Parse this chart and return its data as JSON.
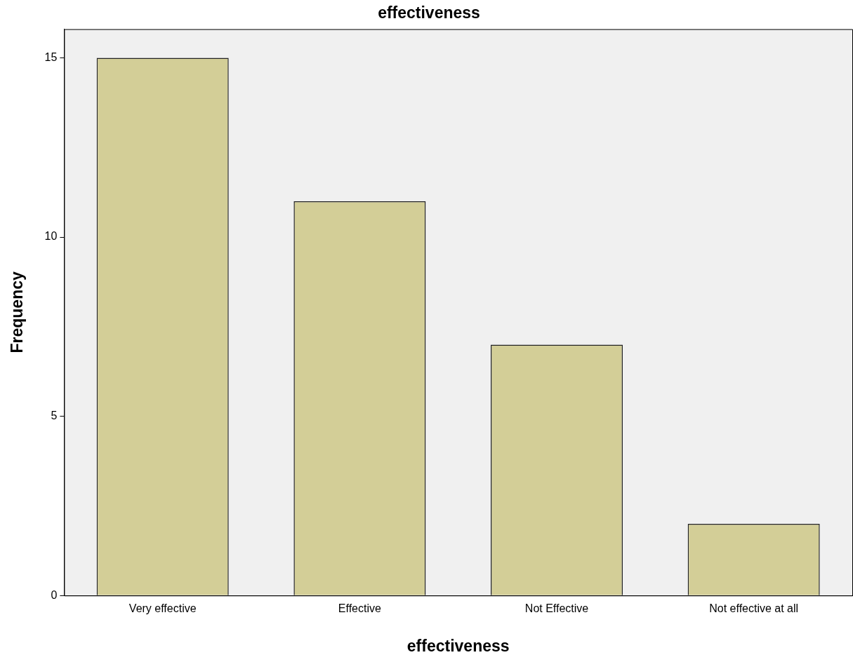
{
  "chart_data": {
    "type": "bar",
    "title": "effectiveness",
    "xlabel": "effectiveness",
    "ylabel": "Frequency",
    "categories": [
      "Very effective",
      "Effective",
      "Not Effective",
      "Not effective at all"
    ],
    "values": [
      15,
      11,
      7,
      2
    ],
    "color": "#d3ce97",
    "ylim": [
      0,
      15.8
    ],
    "yticks": [
      0,
      5,
      10,
      15
    ],
    "grid": false,
    "legend": false
  }
}
